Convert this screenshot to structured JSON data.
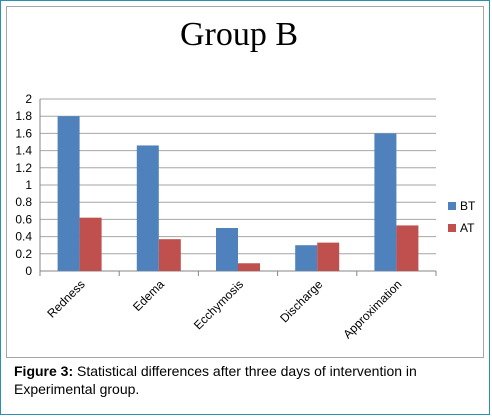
{
  "chart_data": {
    "type": "bar",
    "title": "Group B",
    "categories": [
      "Redness",
      "Edema",
      "Ecchymosis",
      "Discharge",
      "Approximation"
    ],
    "series": [
      {
        "name": "BT",
        "values": [
          1.8,
          1.46,
          0.5,
          0.3,
          1.6
        ],
        "color": "#4f81bd"
      },
      {
        "name": "AT",
        "values": [
          0.62,
          0.37,
          0.09,
          0.33,
          0.53
        ],
        "color": "#c0504d"
      }
    ],
    "yticks": [
      "0",
      "0.2",
      "0.4",
      "0.6",
      "0.8",
      "1",
      "1.2",
      "1.4",
      "1.6",
      "1.8",
      "2"
    ],
    "ylim": [
      0,
      2
    ],
    "grid": true,
    "legend": "right"
  },
  "caption": {
    "label": "Figure 3:",
    "text": " Statistical differences after three days of intervention in Experimental group."
  }
}
